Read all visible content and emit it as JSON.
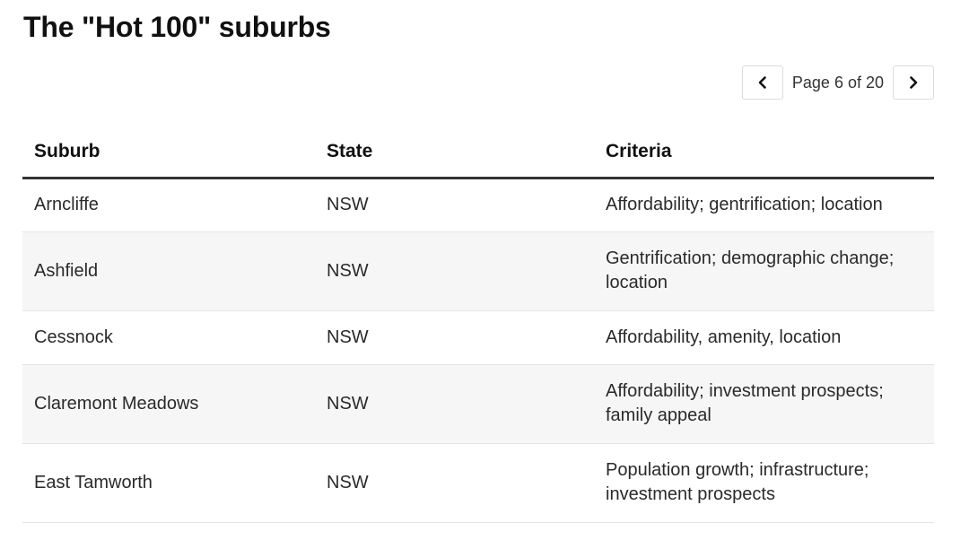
{
  "header": {
    "title": "The \"Hot 100\" suburbs"
  },
  "pagination": {
    "label": "Page 6 of 20",
    "current_page": 6,
    "total_pages": 20,
    "prev_icon": "chevron-left-icon",
    "next_icon": "chevron-right-icon"
  },
  "table": {
    "columns": [
      "Suburb",
      "State",
      "Criteria"
    ],
    "rows": [
      {
        "suburb": "Arncliffe",
        "state": "NSW",
        "criteria": "Affordability; gentrification; location"
      },
      {
        "suburb": "Ashfield",
        "state": "NSW",
        "criteria": "Gentrification; demographic change; location"
      },
      {
        "suburb": "Cessnock",
        "state": "NSW",
        "criteria": "Affordability, amenity, location"
      },
      {
        "suburb": "Claremont Meadows",
        "state": "NSW",
        "criteria": "Affordability; investment prospects; family appeal"
      },
      {
        "suburb": "East Tamworth",
        "state": "NSW",
        "criteria": "Population growth; infrastructure; investment prospects"
      }
    ]
  },
  "colors": {
    "header_rule": "#333333",
    "row_alt_background": "#f6f6f6",
    "row_divider": "#e4e4e4"
  }
}
